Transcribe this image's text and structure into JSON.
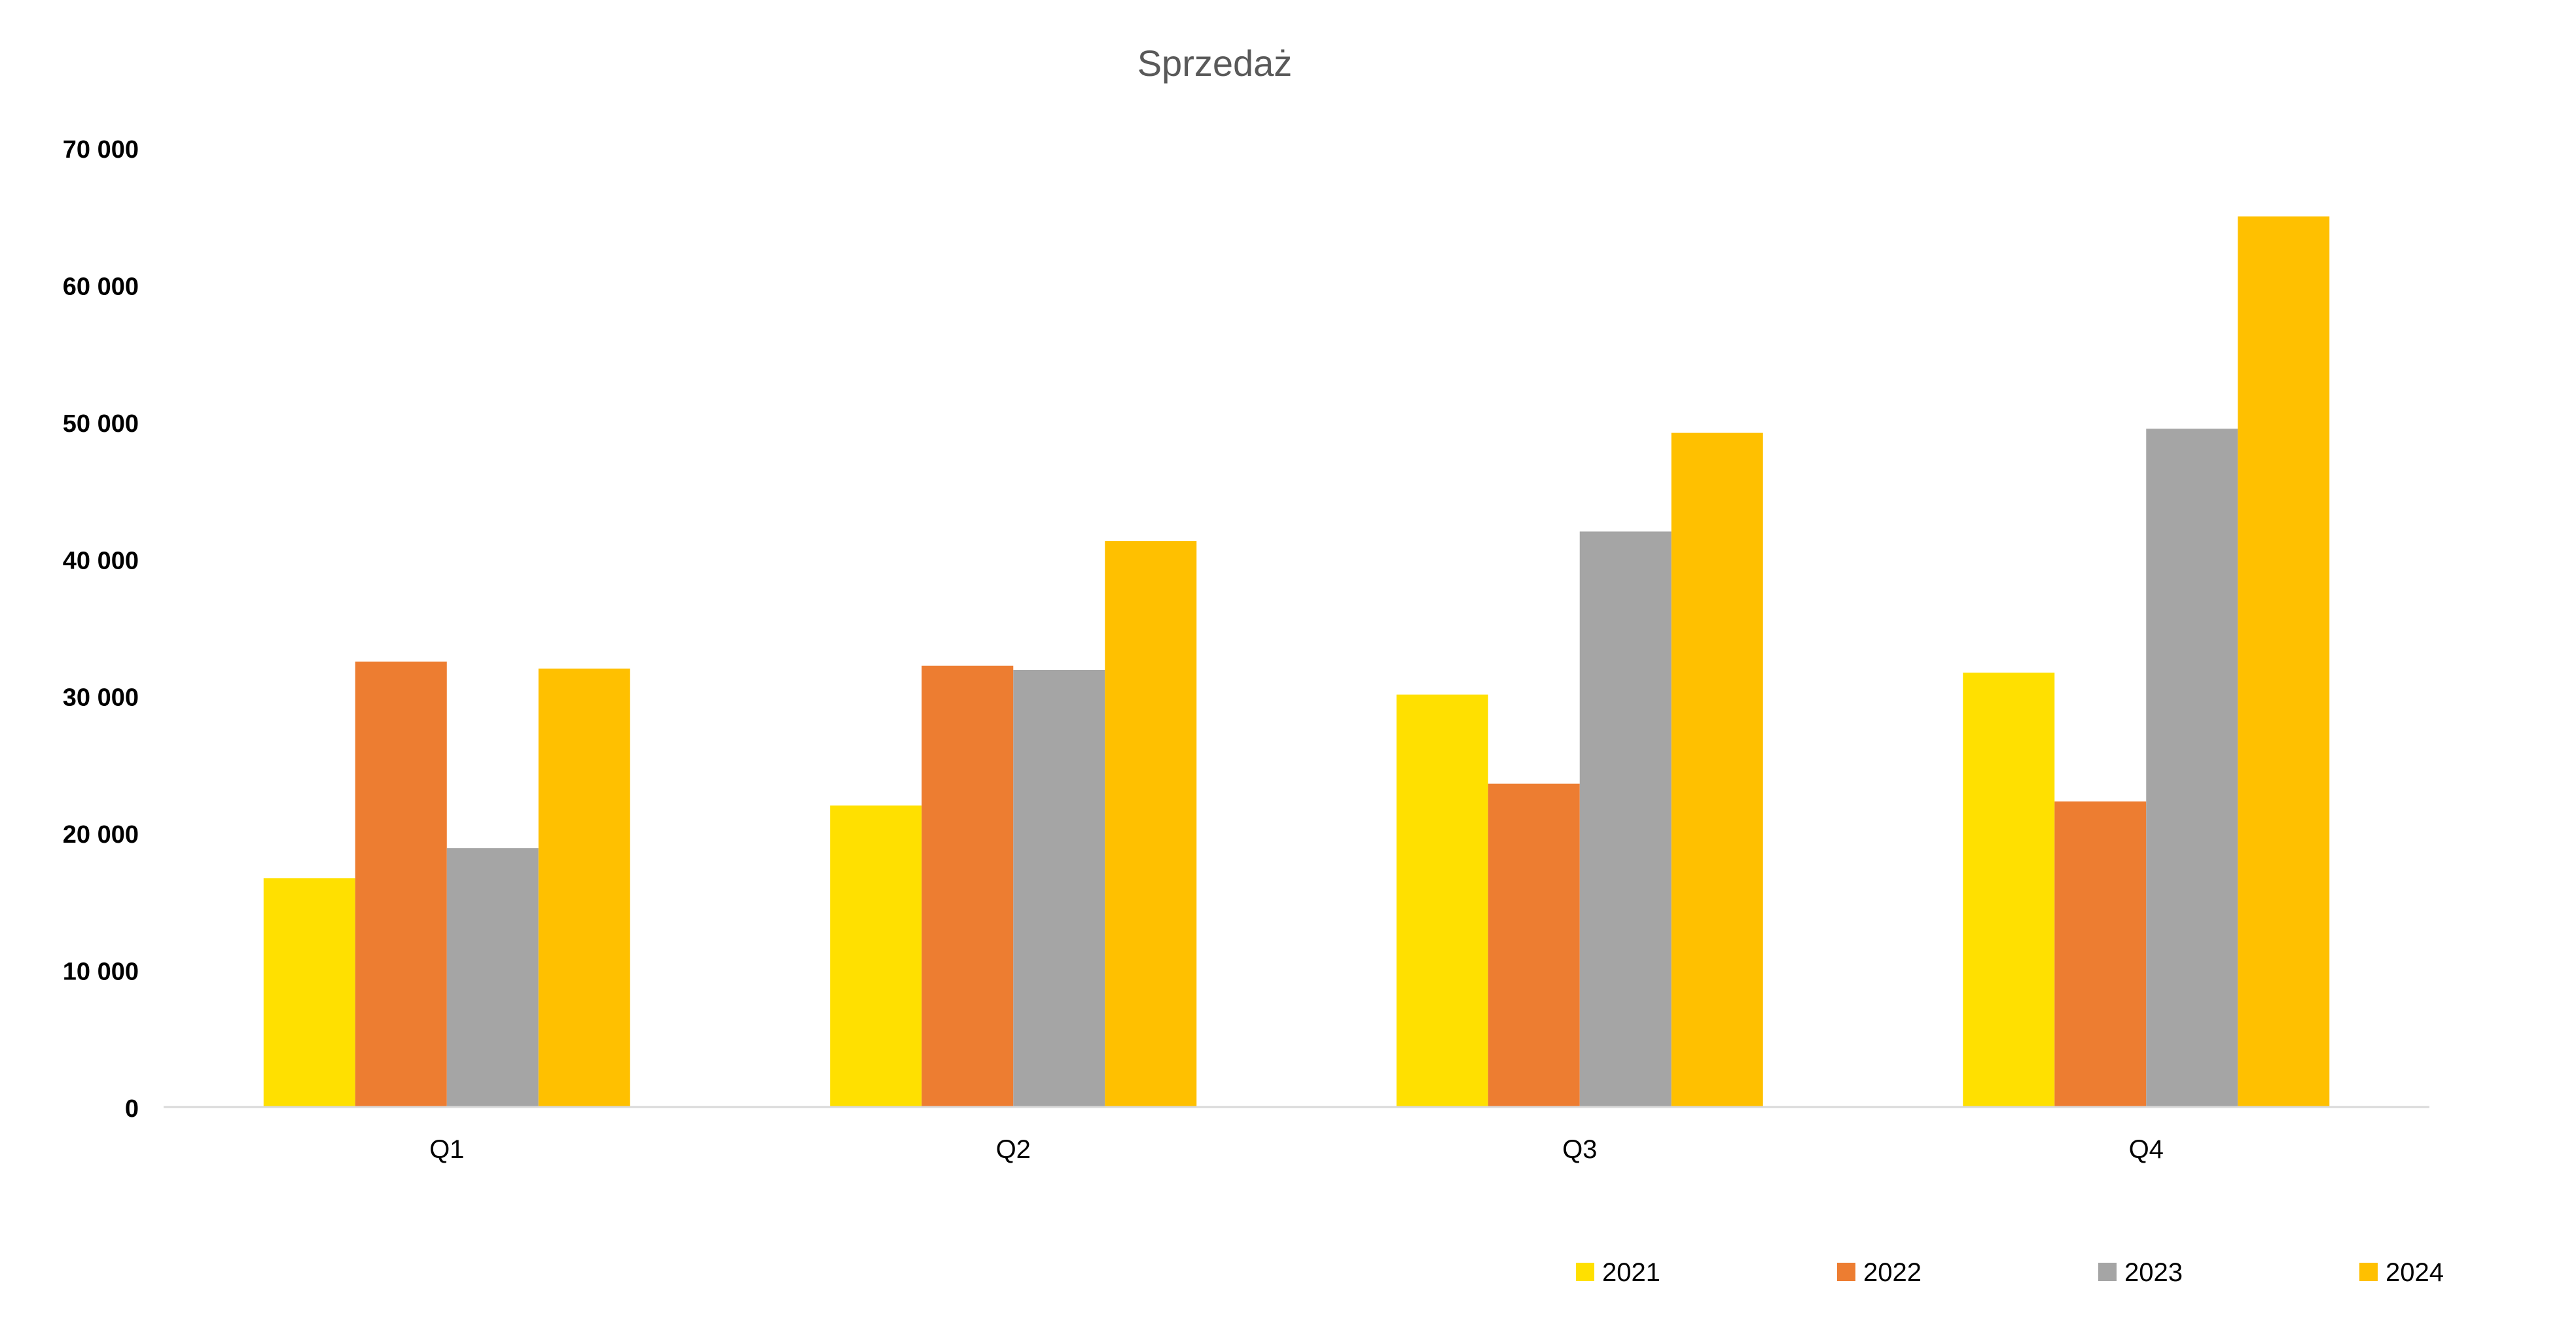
{
  "chart_data": {
    "type": "bar",
    "title": "Sprzedaż",
    "xlabel": "",
    "ylabel": "",
    "categories": [
      "Q1",
      "Q2",
      "Q3",
      "Q4"
    ],
    "series": [
      {
        "name": "2021",
        "color": "#FFE000",
        "values": [
          16700,
          22000,
          30100,
          31700
        ]
      },
      {
        "name": "2022",
        "color": "#ED7D31",
        "values": [
          32500,
          32200,
          23600,
          22300
        ]
      },
      {
        "name": "2023",
        "color": "#A5A5A5",
        "values": [
          18900,
          31900,
          42000,
          49500
        ]
      },
      {
        "name": "2024",
        "color": "#FFC000",
        "values": [
          32000,
          41300,
          49200,
          65000
        ]
      }
    ],
    "ylim": [
      0,
      70000
    ],
    "yticks": [
      0,
      10000,
      20000,
      30000,
      40000,
      50000,
      60000,
      70000
    ],
    "ytick_labels": [
      "0",
      "10 000",
      "20 000",
      "30 000",
      "40 000",
      "50 000",
      "60 000",
      "70 000"
    ],
    "grid": false,
    "legend_position": "bottom-right"
  }
}
